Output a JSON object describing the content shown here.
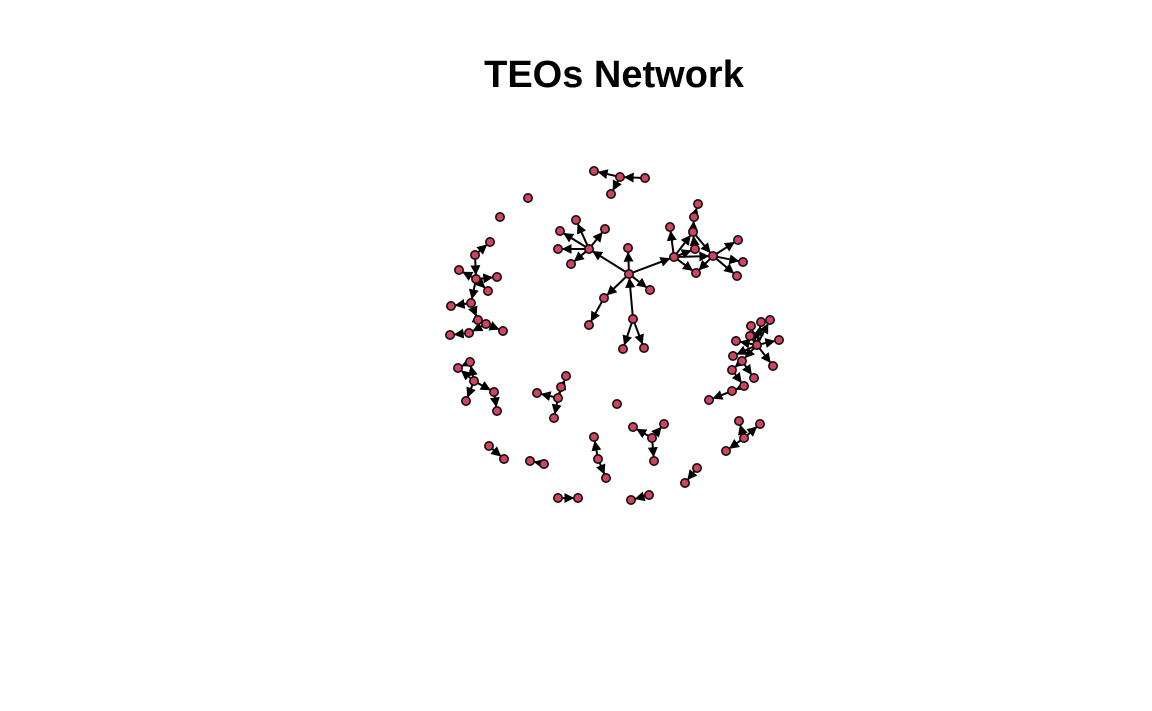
{
  "title": "TEOs Network",
  "colors": {
    "node_fill": "#d3435f",
    "node_border": "#111111",
    "edge": "#000000",
    "background": "#ffffff"
  },
  "network": {
    "directed": true,
    "node_labels_shown": false,
    "node_count": 106,
    "edge_count": 90
  }
}
